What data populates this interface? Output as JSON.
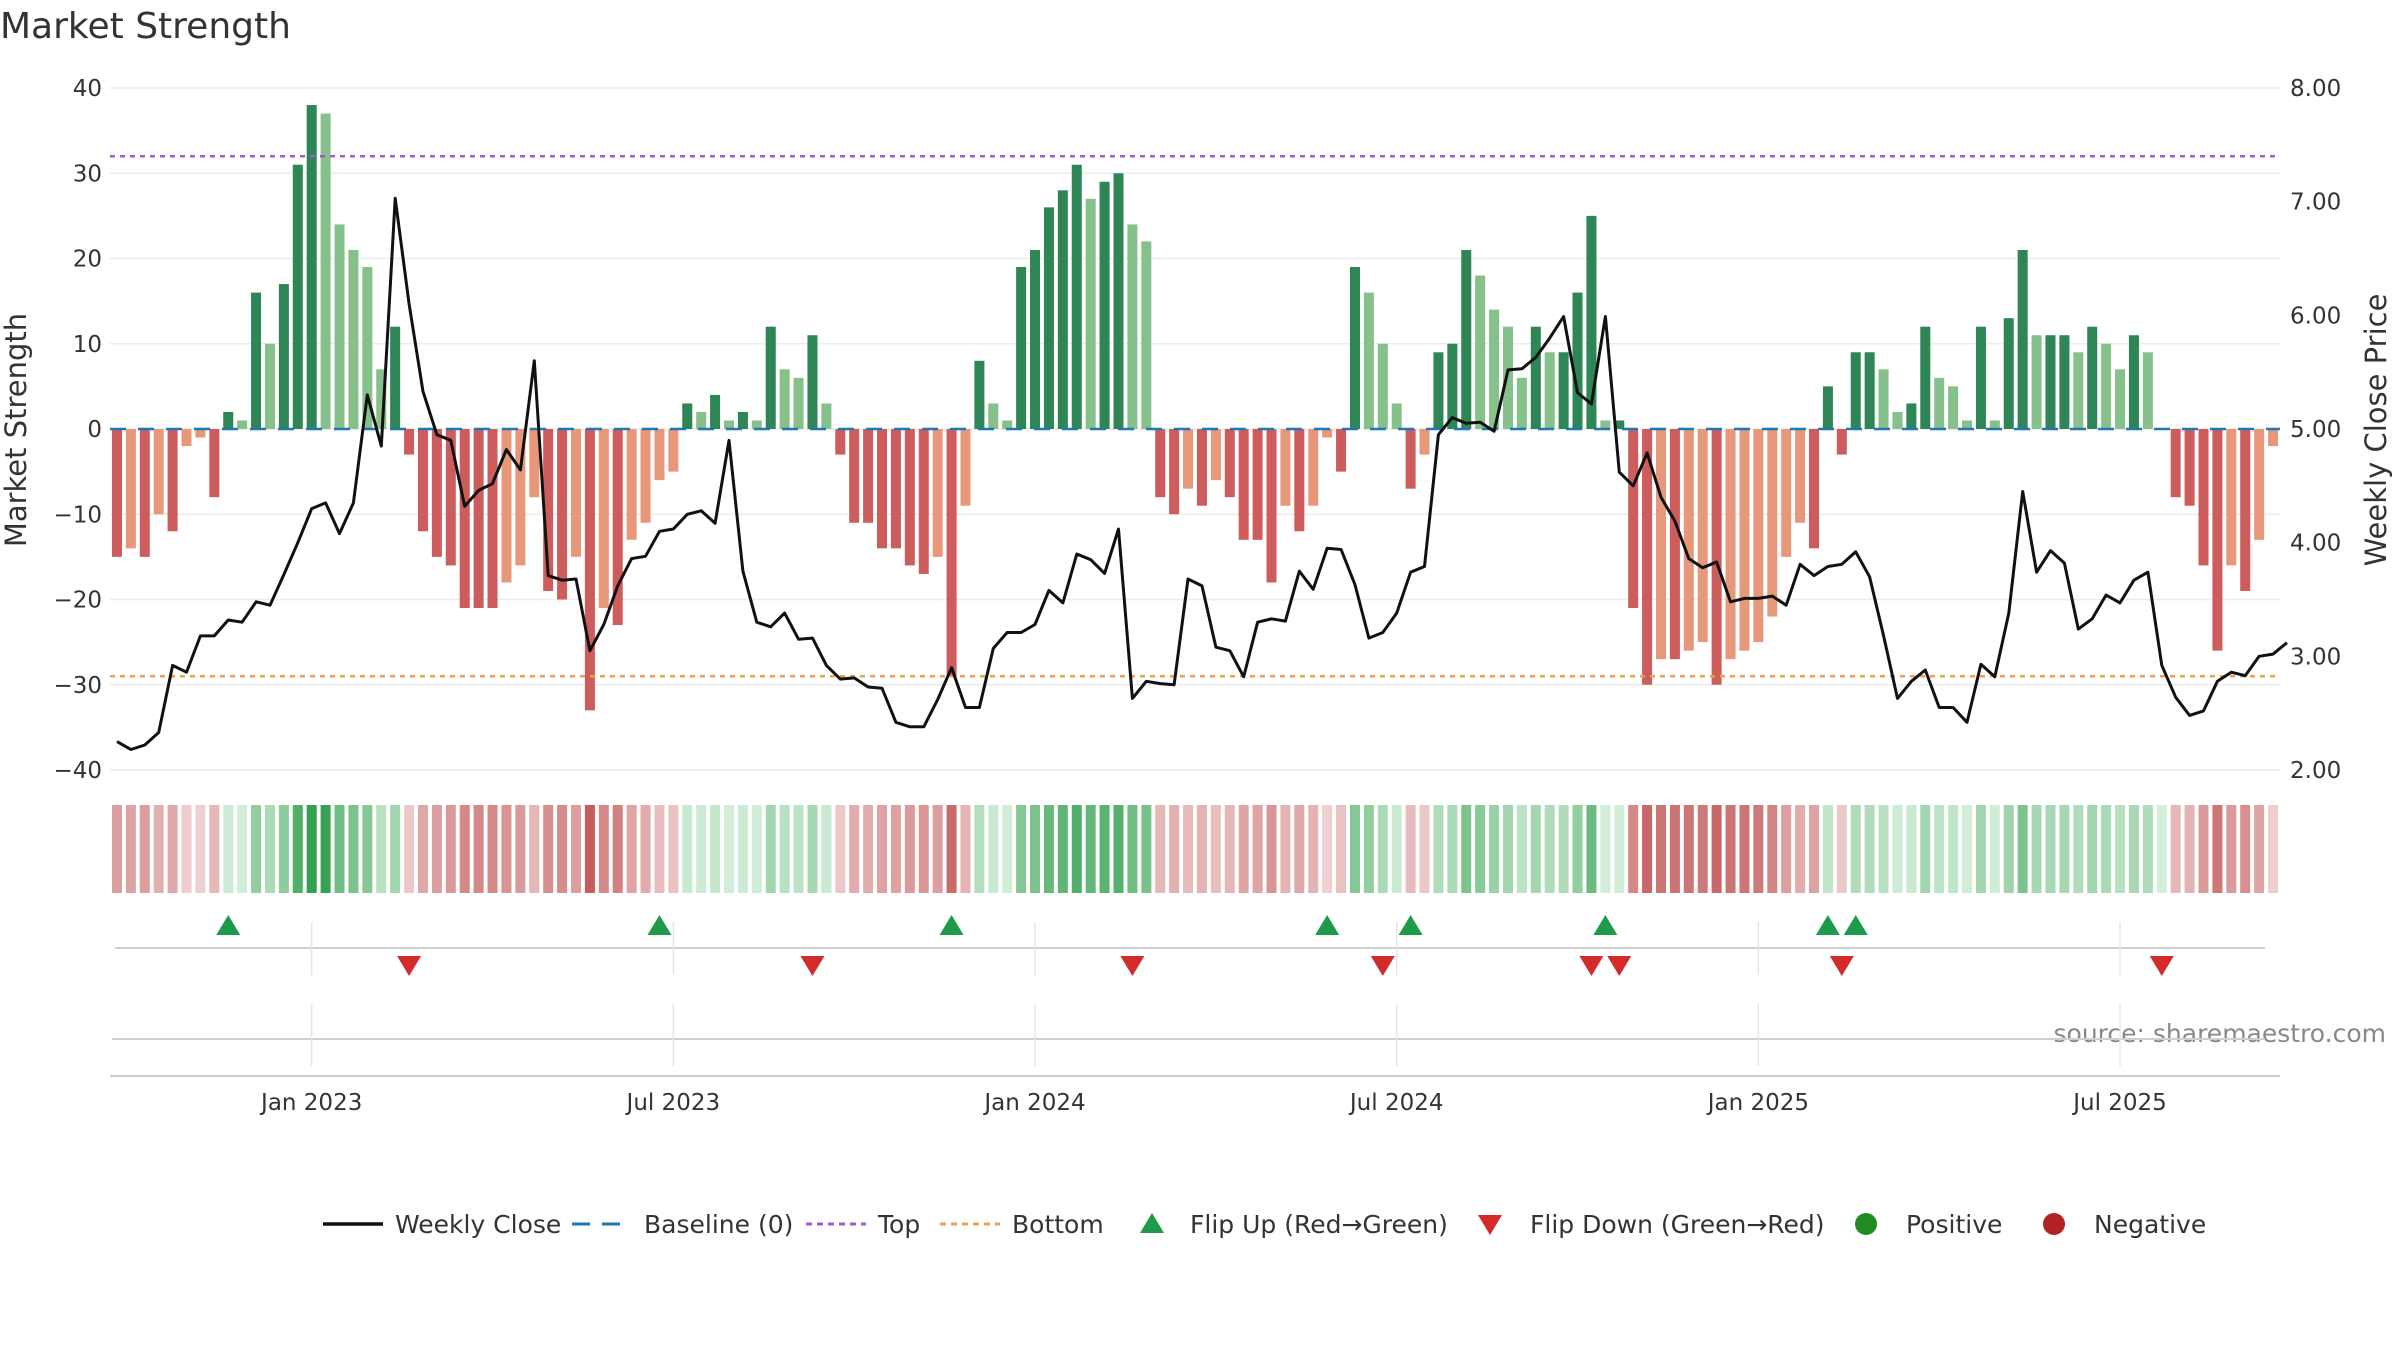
{
  "chart_data": {
    "type": "bar",
    "title": "Market Strength",
    "ylabel_left": "Market Strength",
    "ylabel_right": "Weekly Close Price",
    "source": "source: sharemaestro.com",
    "ylim_left": [
      -40,
      40
    ],
    "ylim_right": [
      2.0,
      8.0
    ],
    "yticks_left": [
      "40",
      "30",
      "20",
      "10",
      "0",
      "−10",
      "−20",
      "−30",
      "−40"
    ],
    "yticks_left_values": [
      40,
      30,
      20,
      10,
      0,
      -10,
      -20,
      -30,
      -40
    ],
    "yticks_right": [
      "8.00",
      "7.00",
      "6.00",
      "5.00",
      "4.00",
      "3.00",
      "2.00"
    ],
    "yticks_right_values": [
      8,
      7,
      6,
      5,
      4,
      3,
      2
    ],
    "top_line": 32,
    "bottom_line": -29,
    "xticks": [
      {
        "label": "Jan 2023",
        "week": 14
      },
      {
        "label": "Jul 2023",
        "week": 40
      },
      {
        "label": "Jan 2024",
        "week": 66
      },
      {
        "label": "Jul 2024",
        "week": 92
      },
      {
        "label": "Jan 2025",
        "week": 118
      },
      {
        "label": "Jul 2025",
        "week": 144
      }
    ],
    "strength": [
      -15,
      -14,
      -15,
      -10,
      -12,
      -2,
      -1,
      -8,
      2,
      1,
      16,
      10,
      17,
      31,
      38,
      37,
      24,
      21,
      19,
      7,
      12,
      -3,
      -12,
      -15,
      -16,
      -21,
      -21,
      -21,
      -18,
      -16,
      -8,
      -19,
      -20,
      -15,
      -33,
      -21,
      -23,
      -13,
      -11,
      -6,
      -5,
      3,
      2,
      4,
      1,
      2,
      1,
      12,
      7,
      6,
      11,
      3,
      -3,
      -11,
      -11,
      -14,
      -14,
      -16,
      -17,
      -15,
      -29,
      -9,
      8,
      3,
      1,
      19,
      21,
      26,
      28,
      31,
      27,
      29,
      30,
      24,
      22,
      -8,
      -10,
      -7,
      -9,
      -6,
      -8,
      -13,
      -13,
      -18,
      -9,
      -12,
      -9,
      -1,
      -5,
      19,
      16,
      10,
      3,
      -7,
      -3,
      9,
      10,
      21,
      18,
      14,
      12,
      6,
      12,
      9,
      9,
      16,
      25,
      1,
      1,
      -21,
      -30,
      -27,
      -27,
      -26,
      -25,
      -30,
      -27,
      -26,
      -25,
      -22,
      -15,
      -11,
      -14,
      5,
      -3,
      9,
      9,
      7,
      2,
      3,
      12,
      6,
      5,
      1,
      12,
      1,
      13,
      21,
      11,
      11,
      11,
      9,
      12,
      10,
      7,
      11,
      9,
      0,
      -8,
      -9,
      -16,
      -26,
      -16,
      -19,
      -13,
      -2
    ],
    "price": [
      2.25,
      2.18,
      2.22,
      2.33,
      2.92,
      2.86,
      3.18,
      3.18,
      3.32,
      3.3,
      3.48,
      3.45,
      3.72,
      4.0,
      4.3,
      4.35,
      4.08,
      4.35,
      5.3,
      4.85,
      7.03,
      6.1,
      5.33,
      4.95,
      4.9,
      4.32,
      4.46,
      4.52,
      4.82,
      4.64,
      5.6,
      3.71,
      3.67,
      3.68,
      3.05,
      3.28,
      3.62,
      3.86,
      3.88,
      4.1,
      4.12,
      4.25,
      4.28,
      4.17,
      4.9,
      3.75,
      3.3,
      3.26,
      3.38,
      3.15,
      3.16,
      2.92,
      2.8,
      2.81,
      2.73,
      2.72,
      2.42,
      2.38,
      2.38,
      2.62,
      2.9,
      2.55,
      2.55,
      3.07,
      3.21,
      3.21,
      3.28,
      3.58,
      3.47,
      3.9,
      3.85,
      3.73,
      4.12,
      2.63,
      2.78,
      2.76,
      2.75,
      3.68,
      3.62,
      3.08,
      3.05,
      2.82,
      3.3,
      3.33,
      3.31,
      3.75,
      3.59,
      3.95,
      3.94,
      3.63,
      3.16,
      3.21,
      3.38,
      3.74,
      3.79,
      4.95,
      5.1,
      5.05,
      5.06,
      4.98,
      5.52,
      5.53,
      5.63,
      5.8,
      5.99,
      5.32,
      5.22,
      5.99,
      4.62,
      4.5,
      4.79,
      4.4,
      4.19,
      3.86,
      3.78,
      3.83,
      3.48,
      3.51,
      3.51,
      3.53,
      3.45,
      3.81,
      3.71,
      3.79,
      3.81,
      3.92,
      3.7,
      3.18,
      2.63,
      2.78,
      2.88,
      2.55,
      2.55,
      2.42,
      2.93,
      2.82,
      3.38,
      4.45,
      3.74,
      3.93,
      3.82,
      3.24,
      3.33,
      3.54,
      3.47,
      3.67,
      3.74,
      2.92,
      2.64,
      2.48,
      2.52,
      2.78,
      2.86,
      2.83,
      3.0,
      3.02,
      3.12
    ],
    "flip_up_weeks": [
      8,
      39,
      60,
      87,
      93,
      107,
      123,
      125
    ],
    "flip_down_weeks": [
      21,
      50,
      73,
      91,
      106,
      108,
      124,
      147
    ],
    "legend": [
      {
        "key": "weekly_close",
        "label": "Weekly Close"
      },
      {
        "key": "baseline",
        "label": "Baseline (0)"
      },
      {
        "key": "top",
        "label": "Top"
      },
      {
        "key": "bottom",
        "label": "Bottom"
      },
      {
        "key": "flip_up",
        "label": "Flip Up (Red→Green)"
      },
      {
        "key": "flip_down",
        "label": "Flip Down (Green→Red)"
      },
      {
        "key": "positive",
        "label": "Positive"
      },
      {
        "key": "negative",
        "label": "Negative"
      }
    ],
    "colors": {
      "pos_dark": "#2e8555",
      "pos_light": "#86c08a",
      "neg_dark": "#cd5d5d",
      "neg_light": "#e8987a",
      "price": "#111111",
      "baseline": "#1f77b4",
      "top": "#a657d6",
      "bottom": "#f0a04b",
      "flip_up": "#1e9b48",
      "flip_down": "#d32a2a",
      "positive": "#228b22",
      "negative": "#b22222"
    }
  }
}
